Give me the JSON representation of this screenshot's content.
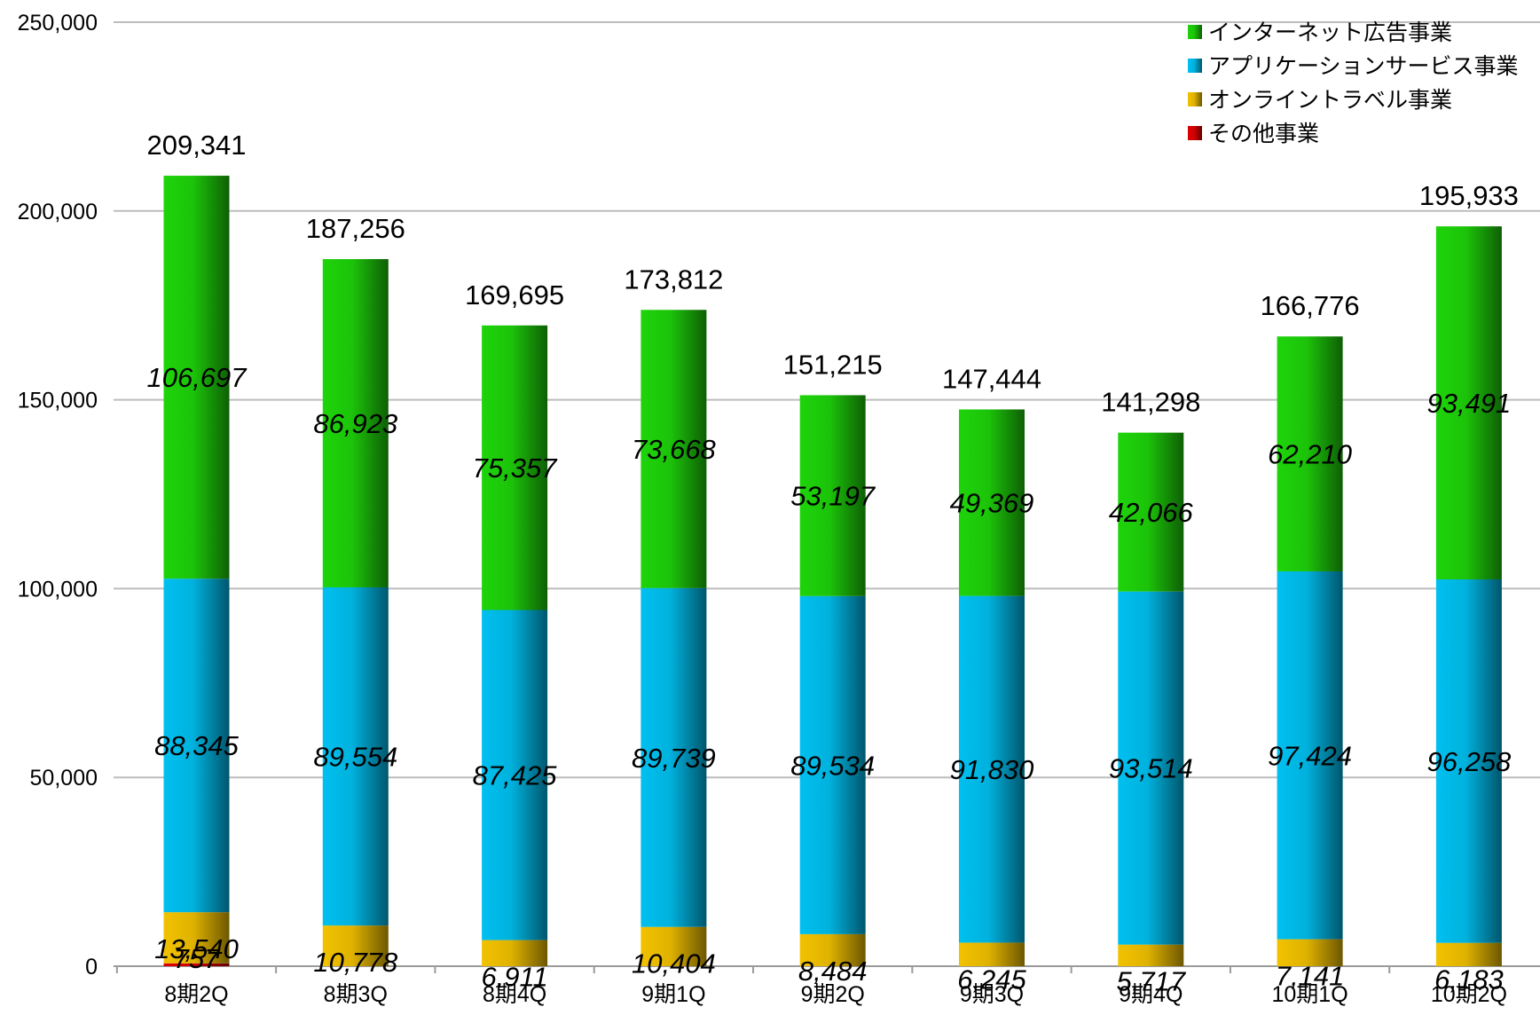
{
  "chart_data": {
    "type": "bar",
    "stacked": true,
    "title": "",
    "xlabel": "",
    "ylabel": "",
    "ylim": [
      0,
      250000
    ],
    "yticks": [
      "0",
      "50,000",
      "100,000",
      "150,000",
      "200,000",
      "250,000"
    ],
    "grid": true,
    "legend_position": "top-right",
    "categories": [
      "8期2Q",
      "8期3Q",
      "8期4Q",
      "9期1Q",
      "9期2Q",
      "9期3Q",
      "9期4Q",
      "10期1Q",
      "10期2Q"
    ],
    "series": [
      {
        "name": "その他事業",
        "color": "#e00000",
        "values": [
          757,
          0,
          0,
          0,
          0,
          0,
          0,
          0,
          0
        ],
        "labels": [
          "757",
          "",
          "",
          "",
          "",
          "",
          "",
          "",
          ""
        ]
      },
      {
        "name": "オンライントラベル事業",
        "color": "#f2c200",
        "values": [
          13540,
          10778,
          6911,
          10404,
          8484,
          6245,
          5717,
          7141,
          6183
        ],
        "labels": [
          "13,540",
          "10,778",
          "6,911",
          "10,404",
          "8,484",
          "6,245",
          "5,717",
          "7,141",
          "6,183"
        ]
      },
      {
        "name": "アプリケーションサービス事業",
        "color": "#00c0f0",
        "values": [
          88345,
          89554,
          87425,
          89739,
          89534,
          91830,
          93514,
          97424,
          96258
        ],
        "labels": [
          "88,345",
          "89,554",
          "87,425",
          "89,739",
          "89,534",
          "91,830",
          "93,514",
          "97,424",
          "96,258"
        ]
      },
      {
        "name": "インターネット広告事業",
        "color": "#1ed40a",
        "values": [
          106697,
          86923,
          75357,
          73668,
          53197,
          49369,
          42066,
          62210,
          93491
        ],
        "labels": [
          "106,697",
          "86,923",
          "75,357",
          "73,668",
          "53,197",
          "49,369",
          "42,066",
          "62,210",
          "93,491"
        ]
      }
    ],
    "totals": [
      209341,
      187256,
      169695,
      173812,
      151215,
      147444,
      141298,
      166776,
      195933
    ],
    "total_labels": [
      "209,341",
      "187,256",
      "169,695",
      "173,812",
      "151,215",
      "147,444",
      "141,298",
      "166,776",
      "195,933"
    ],
    "legend": [
      {
        "label": "インターネット広告事業",
        "color": "#1ed40a"
      },
      {
        "label": "アプリケーションサービス事業",
        "color": "#00c0f0"
      },
      {
        "label": "オンライントラベル事業",
        "color": "#f2c200"
      },
      {
        "label": "その他事業",
        "color": "#e00000"
      }
    ]
  }
}
